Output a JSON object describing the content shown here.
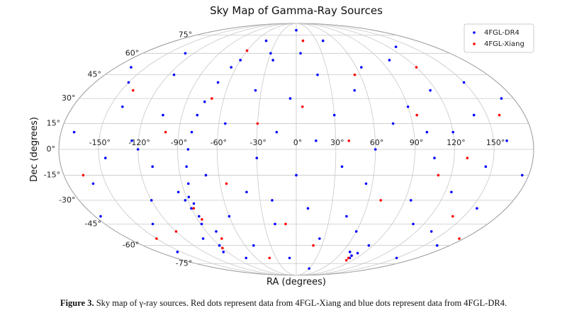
{
  "chart_data": {
    "type": "scatter",
    "projection": "mollweide",
    "title": "Sky Map of Gamma-Ray Sources",
    "xlabel": "RA (degrees)",
    "ylabel": "Dec (degrees)",
    "xlim": [
      -180,
      180
    ],
    "ylim": [
      -90,
      90
    ],
    "xticks": [
      {
        "value": -150,
        "label": "-150°"
      },
      {
        "value": -120,
        "label": "-120°"
      },
      {
        "value": -90,
        "label": "-90°"
      },
      {
        "value": -60,
        "label": "-60°"
      },
      {
        "value": -30,
        "label": "-30°"
      },
      {
        "value": 0,
        "label": "0°"
      },
      {
        "value": 30,
        "label": "30°"
      },
      {
        "value": 60,
        "label": "60°"
      },
      {
        "value": 90,
        "label": "90°"
      },
      {
        "value": 120,
        "label": "120°"
      },
      {
        "value": 150,
        "label": "150°"
      }
    ],
    "yticks": [
      {
        "value": -75,
        "label": "-75°"
      },
      {
        "value": -60,
        "label": "-60°"
      },
      {
        "value": -45,
        "label": "-45°"
      },
      {
        "value": -30,
        "label": "-30°"
      },
      {
        "value": -15,
        "label": "-15°"
      },
      {
        "value": 0,
        "label": "0°"
      },
      {
        "value": 15,
        "label": "15°"
      },
      {
        "value": 30,
        "label": "30°"
      },
      {
        "value": 45,
        "label": "45°"
      },
      {
        "value": 60,
        "label": "60°"
      },
      {
        "value": 75,
        "label": "75°"
      }
    ],
    "grid": true,
    "legend": "upper right",
    "series": [
      {
        "name": "4FGL-DR4",
        "color": "#0000ff",
        "x": [
          -170,
          -160,
          -150,
          -145,
          -140,
          -135,
          -130,
          -125,
          -120,
          -115,
          -110,
          -105,
          -100,
          -95,
          -92,
          -90,
          -88,
          -87,
          -85,
          -86,
          -89,
          -84,
          -82,
          -80,
          -78,
          -75,
          -70,
          -65,
          -60,
          -90,
          -95,
          -80,
          -75,
          -70,
          -60,
          -55,
          -50,
          -45,
          -40,
          -35,
          -30,
          -25,
          -20,
          -15,
          -10,
          -5,
          0,
          5,
          10,
          15,
          20,
          25,
          30,
          35,
          40,
          45,
          50,
          55,
          60,
          65,
          70,
          75,
          78,
          80,
          82,
          85,
          90,
          95,
          100,
          105,
          110,
          115,
          120,
          125,
          130,
          135,
          140,
          145,
          150,
          155,
          160,
          165,
          170,
          175,
          -175,
          -165,
          -155,
          0,
          30,
          100,
          -120,
          60,
          -30,
          150,
          -20
        ],
        "y": [
          10,
          -20,
          40,
          -5,
          25,
          -45,
          60,
          5,
          -30,
          45,
          -10,
          20,
          -55,
          -25,
          -30,
          -35,
          -28,
          -40,
          -20,
          -32,
          -45,
          -10,
          0,
          10,
          20,
          28,
          40,
          50,
          55,
          -60,
          -65,
          -50,
          -70,
          -15,
          -40,
          15,
          -60,
          70,
          -25,
          35,
          -5,
          55,
          -45,
          10,
          -70,
          30,
          -15,
          60,
          -35,
          5,
          45,
          -55,
          20,
          -10,
          70,
          -40,
          35,
          -20,
          0,
          50,
          -65,
          15,
          -68,
          -70,
          -66,
          -60,
          25,
          -30,
          55,
          -5,
          -45,
          35,
          10,
          -25,
          65,
          -50,
          20,
          -10,
          40,
          -35,
          5,
          -60,
          30,
          -15,
          -40,
          50,
          -65,
          80,
          -80,
          10,
          0,
          -50,
          60,
          -70,
          -30
        ]
      },
      {
        "name": "4FGL-Xiang",
        "color": "#ff0000",
        "x": [
          -165,
          -140,
          -120,
          -100,
          -88,
          -86,
          -90,
          -80,
          -60,
          -55,
          -30,
          -10,
          5,
          20,
          40,
          55,
          70,
          78,
          80,
          95,
          110,
          120,
          140,
          160,
          175,
          -40,
          10,
          -70,
          130,
          -150
        ],
        "y": [
          -15,
          35,
          -50,
          10,
          -35,
          -42,
          -62,
          -55,
          62,
          -20,
          15,
          -45,
          25,
          -60,
          5,
          45,
          -30,
          -70,
          -72,
          20,
          -15,
          50,
          -40,
          20,
          -55,
          -70,
          70,
          30,
          -5,
          -55
        ]
      }
    ]
  },
  "caption": {
    "label": "Figure 3.",
    "text": " Sky map of γ-ray sources. Red dots represent data from 4FGL-Xiang and blue dots represent data from 4FGL-DR4."
  }
}
